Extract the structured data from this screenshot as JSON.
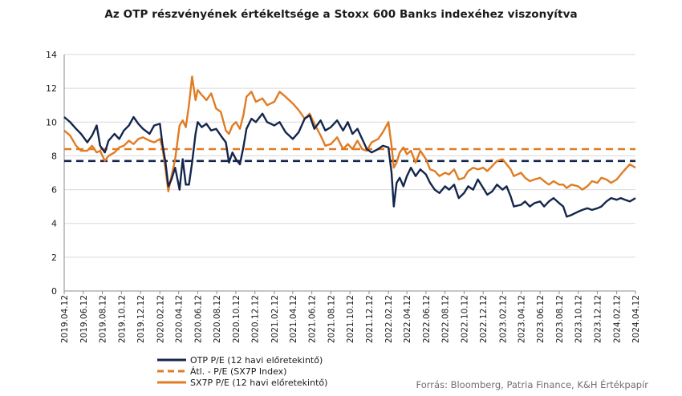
{
  "chart_data": {
    "type": "line",
    "title": "Az OTP részvényének értékeltsége a Stoxx 600 Banks indexéhez viszonyítva",
    "xlabel": "",
    "ylabel": "",
    "ylim": [
      0,
      14
    ],
    "yticks": [
      0,
      2,
      4,
      6,
      8,
      10,
      12,
      14
    ],
    "xlim": [
      "2019.04.12",
      "2024.04.12"
    ],
    "xticks": [
      "2019.04.12",
      "2019.06.12",
      "2019.08.12",
      "2019.10.12",
      "2019.12.12",
      "2020.02.12",
      "2020.04.12",
      "2020.06.12",
      "2020.08.12",
      "2020.10.12",
      "2020.12.12",
      "2021.02.12",
      "2021.04.12",
      "2021.06.12",
      "2021.08.12",
      "2021.10.12",
      "2021.12.12",
      "2022.02.12",
      "2022.04.12",
      "2022.06.12",
      "2022.08.12",
      "2022.10.12",
      "2022.12.12",
      "2023.02.12",
      "2023.04.12",
      "2023.06.12",
      "2023.08.12",
      "2023.10.12",
      "2023.12.12",
      "2024.02.12",
      "2024.04.12"
    ],
    "grid": true,
    "legend_position": "bottom-left",
    "series": [
      {
        "name": "OTP P/E  (12 havi előretekintő)",
        "color": "#14264c",
        "style": "solid",
        "points": [
          [
            "2019.04.12",
            10.3
          ],
          [
            "2019.05.01",
            10.0
          ],
          [
            "2019.05.20",
            9.6
          ],
          [
            "2019.06.05",
            9.3
          ],
          [
            "2019.06.25",
            8.8
          ],
          [
            "2019.07.10",
            9.2
          ],
          [
            "2019.07.25",
            9.8
          ],
          [
            "2019.08.05",
            8.6
          ],
          [
            "2019.08.20",
            8.2
          ],
          [
            "2019.09.01",
            8.9
          ],
          [
            "2019.09.20",
            9.3
          ],
          [
            "2019.10.05",
            9.0
          ],
          [
            "2019.10.20",
            9.5
          ],
          [
            "2019.11.05",
            9.8
          ],
          [
            "2019.11.20",
            10.3
          ],
          [
            "2019.12.05",
            9.9
          ],
          [
            "2019.12.20",
            9.6
          ],
          [
            "2020.01.10",
            9.3
          ],
          [
            "2020.01.25",
            9.8
          ],
          [
            "2020.02.12",
            9.9
          ],
          [
            "2020.02.20",
            8.7
          ],
          [
            "2020.03.01",
            7.6
          ],
          [
            "2020.03.10",
            6.2
          ],
          [
            "2020.03.20",
            6.6
          ],
          [
            "2020.04.01",
            7.3
          ],
          [
            "2020.04.15",
            6.0
          ],
          [
            "2020.04.25",
            7.8
          ],
          [
            "2020.05.05",
            6.3
          ],
          [
            "2020.05.15",
            6.3
          ],
          [
            "2020.05.25",
            7.6
          ],
          [
            "2020.06.05",
            9.3
          ],
          [
            "2020.06.12",
            10.0
          ],
          [
            "2020.06.25",
            9.7
          ],
          [
            "2020.07.10",
            9.9
          ],
          [
            "2020.07.25",
            9.5
          ],
          [
            "2020.08.10",
            9.6
          ],
          [
            "2020.08.25",
            9.2
          ],
          [
            "2020.09.10",
            8.8
          ],
          [
            "2020.09.20",
            7.6
          ],
          [
            "2020.10.01",
            8.2
          ],
          [
            "2020.10.12",
            7.8
          ],
          [
            "2020.10.25",
            7.5
          ],
          [
            "2020.11.05",
            8.5
          ],
          [
            "2020.11.15",
            9.6
          ],
          [
            "2020.12.01",
            10.2
          ],
          [
            "2020.12.15",
            10.0
          ],
          [
            "2021.01.05",
            10.5
          ],
          [
            "2021.01.20",
            10.0
          ],
          [
            "2021.02.12",
            9.8
          ],
          [
            "2021.03.01",
            10.0
          ],
          [
            "2021.03.20",
            9.4
          ],
          [
            "2021.04.12",
            9.0
          ],
          [
            "2021.05.01",
            9.4
          ],
          [
            "2021.05.20",
            10.2
          ],
          [
            "2021.06.05",
            10.4
          ],
          [
            "2021.06.20",
            9.6
          ],
          [
            "2021.07.10",
            10.1
          ],
          [
            "2021.07.25",
            9.5
          ],
          [
            "2021.08.12",
            9.7
          ],
          [
            "2021.09.01",
            10.1
          ],
          [
            "2021.09.20",
            9.5
          ],
          [
            "2021.10.05",
            10.0
          ],
          [
            "2021.10.20",
            9.3
          ],
          [
            "2021.11.05",
            9.6
          ],
          [
            "2021.11.20",
            9.0
          ],
          [
            "2021.12.05",
            8.4
          ],
          [
            "2021.12.20",
            8.2
          ],
          [
            "2022.01.10",
            8.4
          ],
          [
            "2022.01.25",
            8.6
          ],
          [
            "2022.02.12",
            8.5
          ],
          [
            "2022.02.22",
            7.0
          ],
          [
            "2022.03.01",
            5.0
          ],
          [
            "2022.03.10",
            6.4
          ],
          [
            "2022.03.20",
            6.7
          ],
          [
            "2022.04.01",
            6.2
          ],
          [
            "2022.04.12",
            6.8
          ],
          [
            "2022.04.25",
            7.3
          ],
          [
            "2022.05.10",
            6.8
          ],
          [
            "2022.05.25",
            7.2
          ],
          [
            "2022.06.12",
            6.9
          ],
          [
            "2022.06.25",
            6.4
          ],
          [
            "2022.07.10",
            6.0
          ],
          [
            "2022.07.25",
            5.8
          ],
          [
            "2022.08.12",
            6.2
          ],
          [
            "2022.08.25",
            6.0
          ],
          [
            "2022.09.10",
            6.3
          ],
          [
            "2022.09.25",
            5.5
          ],
          [
            "2022.10.12",
            5.8
          ],
          [
            "2022.10.25",
            6.2
          ],
          [
            "2022.11.10",
            6.0
          ],
          [
            "2022.11.25",
            6.6
          ],
          [
            "2022.12.12",
            6.1
          ],
          [
            "2022.12.25",
            5.7
          ],
          [
            "2023.01.10",
            5.9
          ],
          [
            "2023.01.25",
            6.3
          ],
          [
            "2023.02.12",
            6.0
          ],
          [
            "2023.02.25",
            6.2
          ],
          [
            "2023.03.10",
            5.6
          ],
          [
            "2023.03.20",
            5.0
          ],
          [
            "2023.04.12",
            5.1
          ],
          [
            "2023.04.25",
            5.3
          ],
          [
            "2023.05.10",
            5.0
          ],
          [
            "2023.05.25",
            5.2
          ],
          [
            "2023.06.12",
            5.3
          ],
          [
            "2023.06.25",
            5.0
          ],
          [
            "2023.07.10",
            5.3
          ],
          [
            "2023.07.25",
            5.5
          ],
          [
            "2023.08.12",
            5.2
          ],
          [
            "2023.08.25",
            5.0
          ],
          [
            "2023.09.05",
            4.4
          ],
          [
            "2023.09.20",
            4.5
          ],
          [
            "2023.10.12",
            4.7
          ],
          [
            "2023.10.25",
            4.8
          ],
          [
            "2023.11.10",
            4.9
          ],
          [
            "2023.11.25",
            4.8
          ],
          [
            "2023.12.12",
            4.9
          ],
          [
            "2023.12.25",
            5.0
          ],
          [
            "2024.01.10",
            5.3
          ],
          [
            "2024.01.25",
            5.5
          ],
          [
            "2024.02.12",
            5.4
          ],
          [
            "2024.02.25",
            5.5
          ],
          [
            "2024.03.10",
            5.4
          ],
          [
            "2024.03.25",
            5.3
          ],
          [
            "2024.04.12",
            5.5
          ]
        ]
      },
      {
        "name": "Átl. - P/E  (SX7P Index)",
        "color": "#e07c23",
        "style": "dashed",
        "points": [
          [
            "2019.04.12",
            8.4
          ],
          [
            "2024.04.12",
            8.4
          ]
        ]
      },
      {
        "name": "SX7P P/E  (12 havi előretekintő)",
        "color": "#e07c23",
        "style": "solid",
        "points": [
          [
            "2019.04.12",
            9.5
          ],
          [
            "2019.05.01",
            9.2
          ],
          [
            "2019.05.20",
            8.6
          ],
          [
            "2019.06.05",
            8.3
          ],
          [
            "2019.06.25",
            8.3
          ],
          [
            "2019.07.10",
            8.6
          ],
          [
            "2019.07.25",
            8.2
          ],
          [
            "2019.08.05",
            8.3
          ],
          [
            "2019.08.20",
            7.7
          ],
          [
            "2019.09.01",
            8.0
          ],
          [
            "2019.09.20",
            8.2
          ],
          [
            "2019.10.05",
            8.5
          ],
          [
            "2019.10.20",
            8.6
          ],
          [
            "2019.11.05",
            8.9
          ],
          [
            "2019.11.20",
            8.7
          ],
          [
            "2019.12.05",
            9.0
          ],
          [
            "2019.12.20",
            9.1
          ],
          [
            "2020.01.10",
            8.9
          ],
          [
            "2020.01.25",
            8.8
          ],
          [
            "2020.02.12",
            9.0
          ],
          [
            "2020.02.20",
            8.5
          ],
          [
            "2020.03.01",
            7.2
          ],
          [
            "2020.03.10",
            5.9
          ],
          [
            "2020.03.20",
            6.8
          ],
          [
            "2020.04.01",
            7.8
          ],
          [
            "2020.04.15",
            9.8
          ],
          [
            "2020.04.25",
            10.1
          ],
          [
            "2020.05.05",
            9.7
          ],
          [
            "2020.05.15",
            11.0
          ],
          [
            "2020.05.25",
            12.7
          ],
          [
            "2020.06.05",
            11.3
          ],
          [
            "2020.06.12",
            11.9
          ],
          [
            "2020.06.25",
            11.6
          ],
          [
            "2020.07.10",
            11.3
          ],
          [
            "2020.07.25",
            11.7
          ],
          [
            "2020.08.10",
            10.8
          ],
          [
            "2020.08.25",
            10.6
          ],
          [
            "2020.09.10",
            9.5
          ],
          [
            "2020.09.20",
            9.3
          ],
          [
            "2020.10.01",
            9.8
          ],
          [
            "2020.10.12",
            10.0
          ],
          [
            "2020.10.25",
            9.6
          ],
          [
            "2020.11.05",
            10.4
          ],
          [
            "2020.11.15",
            11.5
          ],
          [
            "2020.12.01",
            11.8
          ],
          [
            "2020.12.15",
            11.2
          ],
          [
            "2021.01.05",
            11.4
          ],
          [
            "2021.01.20",
            11.0
          ],
          [
            "2021.02.12",
            11.2
          ],
          [
            "2021.03.01",
            11.8
          ],
          [
            "2021.03.20",
            11.5
          ],
          [
            "2021.04.12",
            11.1
          ],
          [
            "2021.05.01",
            10.7
          ],
          [
            "2021.05.20",
            10.2
          ],
          [
            "2021.06.05",
            10.5
          ],
          [
            "2021.06.20",
            9.9
          ],
          [
            "2021.07.10",
            9.2
          ],
          [
            "2021.07.25",
            8.6
          ],
          [
            "2021.08.12",
            8.7
          ],
          [
            "2021.09.01",
            9.1
          ],
          [
            "2021.09.20",
            8.4
          ],
          [
            "2021.10.05",
            8.7
          ],
          [
            "2021.10.20",
            8.4
          ],
          [
            "2021.11.05",
            8.9
          ],
          [
            "2021.11.20",
            8.4
          ],
          [
            "2021.12.05",
            8.3
          ],
          [
            "2021.12.20",
            8.8
          ],
          [
            "2022.01.10",
            9.0
          ],
          [
            "2022.01.25",
            9.4
          ],
          [
            "2022.02.12",
            10.0
          ],
          [
            "2022.02.22",
            8.6
          ],
          [
            "2022.03.01",
            7.3
          ],
          [
            "2022.03.10",
            7.6
          ],
          [
            "2022.03.20",
            8.2
          ],
          [
            "2022.04.01",
            8.5
          ],
          [
            "2022.04.12",
            8.1
          ],
          [
            "2022.04.25",
            8.3
          ],
          [
            "2022.05.10",
            7.6
          ],
          [
            "2022.05.25",
            8.3
          ],
          [
            "2022.06.12",
            7.8
          ],
          [
            "2022.06.25",
            7.2
          ],
          [
            "2022.07.10",
            7.1
          ],
          [
            "2022.07.25",
            6.8
          ],
          [
            "2022.08.12",
            7.0
          ],
          [
            "2022.08.25",
            6.9
          ],
          [
            "2022.09.10",
            7.2
          ],
          [
            "2022.09.25",
            6.6
          ],
          [
            "2022.10.12",
            6.7
          ],
          [
            "2022.10.25",
            7.1
          ],
          [
            "2022.11.10",
            7.3
          ],
          [
            "2022.11.25",
            7.2
          ],
          [
            "2022.12.12",
            7.3
          ],
          [
            "2022.12.25",
            7.1
          ],
          [
            "2023.01.10",
            7.4
          ],
          [
            "2023.01.25",
            7.7
          ],
          [
            "2023.02.12",
            7.8
          ],
          [
            "2023.02.25",
            7.5
          ],
          [
            "2023.03.10",
            7.2
          ],
          [
            "2023.03.20",
            6.8
          ],
          [
            "2023.04.12",
            7.0
          ],
          [
            "2023.04.25",
            6.7
          ],
          [
            "2023.05.10",
            6.5
          ],
          [
            "2023.05.25",
            6.6
          ],
          [
            "2023.06.12",
            6.7
          ],
          [
            "2023.06.25",
            6.5
          ],
          [
            "2023.07.10",
            6.3
          ],
          [
            "2023.07.25",
            6.5
          ],
          [
            "2023.08.12",
            6.3
          ],
          [
            "2023.08.25",
            6.3
          ],
          [
            "2023.09.05",
            6.1
          ],
          [
            "2023.09.20",
            6.3
          ],
          [
            "2023.10.12",
            6.2
          ],
          [
            "2023.10.25",
            6.0
          ],
          [
            "2023.11.10",
            6.2
          ],
          [
            "2023.11.25",
            6.5
          ],
          [
            "2023.12.12",
            6.4
          ],
          [
            "2023.12.25",
            6.7
          ],
          [
            "2024.01.10",
            6.6
          ],
          [
            "2024.01.25",
            6.4
          ],
          [
            "2024.02.12",
            6.6
          ],
          [
            "2024.02.25",
            6.9
          ],
          [
            "2024.03.10",
            7.2
          ],
          [
            "2024.03.25",
            7.5
          ],
          [
            "2024.04.12",
            7.3
          ]
        ]
      },
      {
        "name": "",
        "color": "#14264c",
        "style": "dashed",
        "points": [
          [
            "2019.04.12",
            7.7
          ],
          [
            "2024.04.12",
            7.7
          ]
        ]
      }
    ],
    "legend": [
      {
        "label": "OTP P/E  (12 havi előretekintő)",
        "color": "#14264c",
        "style": "solid"
      },
      {
        "label": "Átl. - P/E  (SX7P Index)",
        "color": "#e07c23",
        "style": "dashed"
      },
      {
        "label": "SX7P P/E  (12 havi előretekintő)",
        "color": "#e07c23",
        "style": "solid"
      }
    ]
  },
  "source": "Forrás: Bloomberg, Patria Finance, K&H Értékpapír"
}
